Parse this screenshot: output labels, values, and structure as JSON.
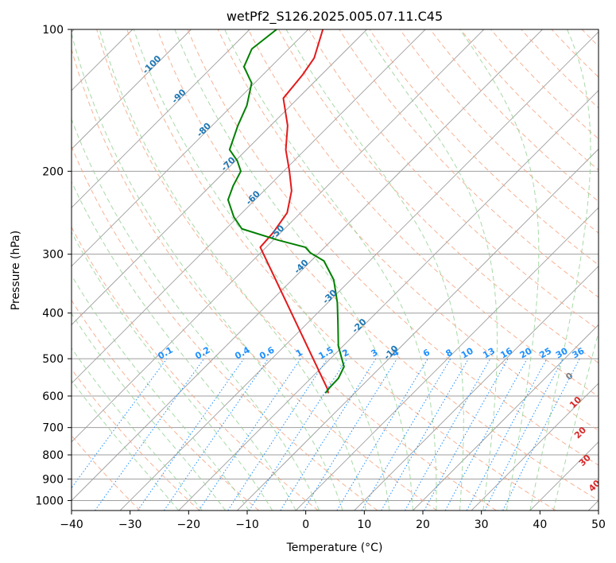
{
  "chart_data": {
    "type": "line",
    "subtype": "skew-T log-P diagram",
    "title": "wetPf2_S126.2025.005.07.11.C45",
    "xlabel": "Temperature (°C)",
    "ylabel": "Pressure (hPa)",
    "xlim": [
      -40,
      50
    ],
    "ylim": [
      1050,
      100
    ],
    "y_scale": "log",
    "grid": true,
    "x_ticks": [
      -40,
      -30,
      -20,
      -10,
      0,
      10,
      20,
      30,
      40,
      50
    ],
    "y_ticks": [
      1000,
      900,
      800,
      700,
      600,
      500,
      400,
      300,
      200,
      100
    ],
    "background_colors": {
      "isotherm": "#9e9e9e",
      "dry_adiabat": "#f4a582",
      "moist_adiabat": "#91cf91",
      "mixing_ratio": "#1e90ff",
      "isotherm_label": "#1f77b4",
      "moist_label": "#d62728",
      "outer_curve": "#e0c8a8"
    },
    "mixing_ratio_labels": [
      "0.1",
      "0.2",
      "0.4",
      "0.6",
      "1",
      "1.5",
      "2",
      "3",
      "4",
      "6",
      "8",
      "10",
      "13",
      "16",
      "20",
      "25",
      "30",
      "36"
    ],
    "mixing_ratio_values": [
      0.1,
      0.2,
      0.4,
      0.6,
      1,
      1.5,
      2,
      3,
      4,
      6,
      8,
      10,
      13,
      16,
      20,
      25,
      30,
      36
    ],
    "mixing_ratio_label_pressure": 500,
    "isotherm_labels": [
      {
        "text": "-100",
        "value": -100,
        "p": 120
      },
      {
        "text": "-90",
        "value": -90,
        "p": 140
      },
      {
        "text": "-80",
        "value": -80,
        "p": 165
      },
      {
        "text": "-70",
        "value": -70,
        "p": 195
      },
      {
        "text": "-60",
        "value": -60,
        "p": 230
      },
      {
        "text": "-50",
        "value": -50,
        "p": 272
      },
      {
        "text": "-40",
        "value": -40,
        "p": 322
      },
      {
        "text": "-30",
        "value": -30,
        "p": 373
      },
      {
        "text": "-20",
        "value": -20,
        "p": 430
      },
      {
        "text": "-10",
        "value": -10,
        "p": 490
      }
    ],
    "moist_adiabat_labels": [
      {
        "text": "0",
        "value": 0,
        "T": 24.5,
        "p": 550
      },
      {
        "text": "10",
        "value": 10,
        "T": 30,
        "p": 625
      },
      {
        "text": "20",
        "value": 20,
        "T": 36,
        "p": 725
      },
      {
        "text": "30",
        "value": 30,
        "T": 41.5,
        "p": 830
      },
      {
        "text": "40",
        "value": 40,
        "T": 47.5,
        "p": 940
      }
    ],
    "series": [
      {
        "role": "temperature",
        "color": "#e31a1c",
        "points": [
          {
            "p": 590,
            "t": -14.6
          },
          {
            "p": 580,
            "t": -15.3
          },
          {
            "p": 290,
            "t": -51.0
          },
          {
            "p": 270,
            "t": -51.3
          },
          {
            "p": 245,
            "t": -52.3
          },
          {
            "p": 220,
            "t": -55.3
          },
          {
            "p": 200,
            "t": -59.0
          },
          {
            "p": 180,
            "t": -63.3
          },
          {
            "p": 160,
            "t": -67.1
          },
          {
            "p": 140,
            "t": -72.5
          },
          {
            "p": 125,
            "t": -73.2
          },
          {
            "p": 115,
            "t": -74.1
          },
          {
            "p": 100,
            "t": -77.5
          }
        ]
      },
      {
        "role": "dewpoint",
        "color": "#008000",
        "points": [
          {
            "p": 590,
            "t": -15.0
          },
          {
            "p": 575,
            "t": -15.2
          },
          {
            "p": 550,
            "t": -15.3
          },
          {
            "p": 520,
            "t": -16.3
          },
          {
            "p": 470,
            "t": -20.8
          },
          {
            "p": 420,
            "t": -24.8
          },
          {
            "p": 380,
            "t": -28.4
          },
          {
            "p": 340,
            "t": -32.9
          },
          {
            "p": 310,
            "t": -37.8
          },
          {
            "p": 298,
            "t": -41.5
          },
          {
            "p": 290,
            "t": -43.3
          },
          {
            "p": 280,
            "t": -49.2
          },
          {
            "p": 265,
            "t": -57.3
          },
          {
            "p": 250,
            "t": -60.7
          },
          {
            "p": 230,
            "t": -64.6
          },
          {
            "p": 215,
            "t": -66.1
          },
          {
            "p": 200,
            "t": -67.3
          },
          {
            "p": 190,
            "t": -69.7
          },
          {
            "p": 180,
            "t": -72.9
          },
          {
            "p": 160,
            "t": -75.6
          },
          {
            "p": 145,
            "t": -77.5
          },
          {
            "p": 130,
            "t": -80.5
          },
          {
            "p": 120,
            "t": -84.6
          },
          {
            "p": 110,
            "t": -86.3
          },
          {
            "p": 100,
            "t": -85.4
          }
        ]
      }
    ]
  }
}
